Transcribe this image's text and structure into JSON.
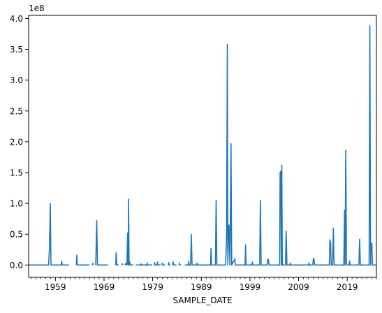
{
  "chart_data": {
    "type": "line",
    "title": "",
    "xlabel": "SAMPLE_DATE",
    "ylabel": "",
    "y_offset_label": "1e8",
    "xlim": [
      1953.5,
      2025.0
    ],
    "ylim": [
      -20000000.0,
      405000000.0
    ],
    "grid": false,
    "legend": "none",
    "color": "#1f77b4",
    "x_ticks": [
      {
        "value": 1959,
        "label": "1959"
      },
      {
        "value": 1969,
        "label": "1969"
      },
      {
        "value": 1979,
        "label": "1979"
      },
      {
        "value": 1989,
        "label": "1989"
      },
      {
        "value": 1999,
        "label": "1999"
      },
      {
        "value": 2009,
        "label": "2009"
      },
      {
        "value": 2019,
        "label": "2019"
      }
    ],
    "y_ticks": [
      {
        "value": 0.0,
        "label": "0.0"
      },
      {
        "value": 50000000,
        "label": "0.5"
      },
      {
        "value": 100000000,
        "label": "1.0"
      },
      {
        "value": 150000000,
        "label": "1.5"
      },
      {
        "value": 200000000,
        "label": "2.0"
      },
      {
        "value": 250000000,
        "label": "2.5"
      },
      {
        "value": 300000000,
        "label": "3.0"
      },
      {
        "value": 350000000,
        "label": "3.5"
      },
      {
        "value": 400000000,
        "label": "4.0"
      }
    ],
    "segments": [
      [
        [
          1953.5,
          0
        ],
        [
          1957.6,
          0
        ],
        [
          1957.8,
          30000000.0
        ],
        [
          1957.95,
          100000000.0
        ],
        [
          1958.1,
          0
        ],
        [
          1960.2,
          0
        ],
        [
          1960.3,
          6000000.0
        ],
        [
          1960.4,
          0
        ],
        [
          1961.8,
          0
        ]
      ],
      [
        [
          1963.3,
          0
        ],
        [
          1963.4,
          16000000.0
        ],
        [
          1963.5,
          0
        ],
        [
          1966.0,
          0
        ]
      ],
      [
        [
          1966.6,
          0
        ],
        [
          1966.7,
          3000000.0
        ],
        [
          1966.8,
          0
        ]
      ],
      [
        [
          1967.3,
          0
        ],
        [
          1967.5,
          72000000.0
        ],
        [
          1967.65,
          0
        ],
        [
          1969.8,
          0
        ]
      ],
      [
        [
          1971.4,
          0
        ],
        [
          1971.5,
          20000000.0
        ],
        [
          1971.6,
          0
        ],
        [
          1972.0,
          0
        ]
      ],
      [
        [
          1972.7,
          0
        ],
        [
          1972.8,
          2000000.0
        ],
        [
          1972.9,
          0
        ]
      ],
      [
        [
          1973.3,
          0
        ],
        [
          1973.5,
          3000000.0
        ],
        [
          1973.6,
          0
        ]
      ],
      [
        [
          1973.7,
          0
        ],
        [
          1973.85,
          52000000.0
        ],
        [
          1973.95,
          0
        ],
        [
          1974.05,
          107000000.0
        ],
        [
          1974.15,
          0
        ],
        [
          1974.3,
          5000000.0
        ],
        [
          1974.4,
          0
        ],
        [
          1975.0,
          0
        ]
      ],
      [
        [
          1975.5,
          0
        ],
        [
          1976.5,
          0
        ],
        [
          1976.6,
          2000000.0
        ],
        [
          1976.7,
          0
        ],
        [
          1977.8,
          0
        ],
        [
          1977.9,
          3000000.0
        ],
        [
          1978.0,
          0
        ],
        [
          1978.9,
          0
        ]
      ],
      [
        [
          1979.3,
          0
        ],
        [
          1979.4,
          4000000.0
        ],
        [
          1979.5,
          0
        ],
        [
          1979.9,
          0
        ],
        [
          1980.0,
          5000000.0
        ],
        [
          1980.1,
          0
        ],
        [
          1980.6,
          0
        ]
      ],
      [
        [
          1980.9,
          0
        ],
        [
          1981.0,
          3000000.0
        ],
        [
          1981.1,
          0
        ],
        [
          1981.6,
          0
        ]
      ],
      [
        [
          1982.2,
          0
        ],
        [
          1982.3,
          4000000.0
        ],
        [
          1982.4,
          0
        ],
        [
          1982.6,
          0
        ]
      ],
      [
        [
          1983.1,
          0
        ],
        [
          1983.2,
          5000000.0
        ],
        [
          1983.3,
          0
        ],
        [
          1983.9,
          0
        ]
      ],
      [
        [
          1984.4,
          0
        ],
        [
          1984.5,
          3000000.0
        ],
        [
          1984.6,
          0
        ],
        [
          1984.8,
          0
        ]
      ],
      [
        [
          1985.6,
          0
        ],
        [
          1986.3,
          0
        ],
        [
          1986.4,
          6000000.0
        ],
        [
          1986.5,
          0
        ],
        [
          1986.8,
          0
        ],
        [
          1986.95,
          50000000.0
        ],
        [
          1987.1,
          0
        ],
        [
          1988.0,
          0
        ],
        [
          1988.1,
          3000000.0
        ],
        [
          1988.2,
          0
        ],
        [
          1990.9,
          0
        ],
        [
          1991.0,
          27000000.0
        ],
        [
          1991.1,
          0
        ],
        [
          1991.9,
          0
        ],
        [
          1992.05,
          105000000.0
        ],
        [
          1992.2,
          0
        ],
        [
          1994.0,
          0
        ],
        [
          1994.2,
          48000000.0
        ],
        [
          1994.35,
          358000000.0
        ],
        [
          1994.45,
          0
        ],
        [
          1994.6,
          50000000.0
        ],
        [
          1994.7,
          65000000.0
        ],
        [
          1994.8,
          30000000.0
        ],
        [
          1994.9,
          0
        ],
        [
          1995.1,
          197000000.0
        ],
        [
          1995.25,
          0
        ],
        [
          1995.9,
          10000000.0
        ],
        [
          1996.0,
          0
        ],
        [
          1998.0,
          0
        ],
        [
          1998.1,
          33000000.0
        ],
        [
          1998.2,
          0
        ],
        [
          1999.4,
          0
        ],
        [
          1999.5,
          5000000.0
        ],
        [
          1999.6,
          0
        ],
        [
          2001.0,
          0
        ],
        [
          2001.15,
          105000000.0
        ],
        [
          2001.3,
          0
        ],
        [
          2002.5,
          0
        ],
        [
          2002.6,
          8000000.0
        ],
        [
          2002.8,
          9000000.0
        ],
        [
          2002.9,
          0
        ],
        [
          2005.1,
          0
        ],
        [
          2005.2,
          150000000.0
        ],
        [
          2005.35,
          152000000.0
        ],
        [
          2005.45,
          0
        ],
        [
          2005.55,
          162000000.0
        ],
        [
          2005.65,
          0
        ],
        [
          2006.3,
          0
        ],
        [
          2006.45,
          55000000.0
        ],
        [
          2006.6,
          0
        ],
        [
          2007.2,
          0
        ],
        [
          2007.3,
          3000000.0
        ],
        [
          2007.4,
          0
        ],
        [
          2008.2,
          0
        ],
        [
          2011.0,
          0
        ],
        [
          2011.1,
          3000000.0
        ],
        [
          2011.2,
          0
        ],
        [
          2011.9,
          0
        ],
        [
          2012.05,
          10000000.0
        ],
        [
          2012.15,
          11000000.0
        ],
        [
          2012.3,
          0
        ],
        [
          2015.3,
          0
        ],
        [
          2015.45,
          41000000.0
        ],
        [
          2015.6,
          35000000.0
        ],
        [
          2015.7,
          0
        ],
        [
          2016.0,
          0
        ],
        [
          2016.15,
          60000000.0
        ],
        [
          2016.3,
          0
        ],
        [
          2018.3,
          0
        ],
        [
          2018.45,
          89000000.0
        ],
        [
          2018.55,
          0
        ],
        [
          2018.7,
          186000000.0
        ],
        [
          2018.85,
          0
        ],
        [
          2019.4,
          0
        ],
        [
          2019.5,
          7000000.0
        ],
        [
          2019.6,
          0
        ],
        [
          2021.4,
          0
        ],
        [
          2021.55,
          42000000.0
        ],
        [
          2021.7,
          0
        ],
        [
          2023.5,
          0
        ],
        [
          2023.65,
          388000000.0
        ],
        [
          2023.8,
          0
        ],
        [
          2023.9,
          35000000.0
        ],
        [
          2024.05,
          35000000.0
        ],
        [
          2024.2,
          0
        ],
        [
          2025.0,
          0
        ]
      ]
    ]
  }
}
